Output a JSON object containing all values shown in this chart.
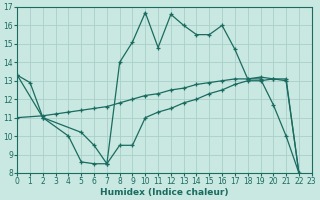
{
  "xlabel": "Humidex (Indice chaleur)",
  "background_color": "#c9e8e1",
  "grid_color": "#a8cfc8",
  "line_color": "#1a6b60",
  "xlim": [
    0,
    23
  ],
  "ylim": [
    8,
    17
  ],
  "xticks": [
    0,
    1,
    2,
    3,
    4,
    5,
    6,
    7,
    8,
    9,
    10,
    11,
    12,
    13,
    14,
    15,
    16,
    17,
    18,
    19,
    20,
    21,
    22,
    23
  ],
  "yticks": [
    8,
    9,
    10,
    11,
    12,
    13,
    14,
    15,
    16,
    17
  ],
  "curve1_x": [
    0,
    1,
    2,
    5,
    6,
    7,
    8,
    9,
    10,
    11,
    12,
    13,
    14,
    15,
    16,
    17,
    18,
    19,
    20,
    21,
    22
  ],
  "curve1_y": [
    13.3,
    12.9,
    11.0,
    10.2,
    9.5,
    8.5,
    14.0,
    15.1,
    16.7,
    14.8,
    16.6,
    16.0,
    15.5,
    15.5,
    16.0,
    14.7,
    13.1,
    13.1,
    11.7,
    10.0,
    8.0
  ],
  "curve2_x": [
    0,
    2,
    4,
    5,
    6,
    7,
    8,
    9,
    10,
    11,
    12,
    13,
    14,
    15,
    16,
    17,
    18,
    19,
    20,
    21,
    22
  ],
  "curve2_y": [
    13.3,
    11.0,
    10.0,
    8.6,
    8.5,
    8.5,
    9.5,
    9.5,
    11.0,
    11.3,
    11.5,
    11.8,
    12.0,
    12.3,
    12.5,
    12.8,
    13.0,
    13.0,
    13.1,
    13.1,
    8.0
  ],
  "curve3_x": [
    0,
    2,
    3,
    4,
    5,
    6,
    7,
    8,
    9,
    10,
    11,
    12,
    13,
    14,
    15,
    16,
    17,
    18,
    19,
    20,
    21,
    22
  ],
  "curve3_y": [
    11.0,
    11.1,
    11.2,
    11.3,
    11.4,
    11.5,
    11.6,
    11.8,
    12.0,
    12.2,
    12.3,
    12.5,
    12.6,
    12.8,
    12.9,
    13.0,
    13.1,
    13.1,
    13.2,
    13.1,
    13.0,
    8.0
  ]
}
